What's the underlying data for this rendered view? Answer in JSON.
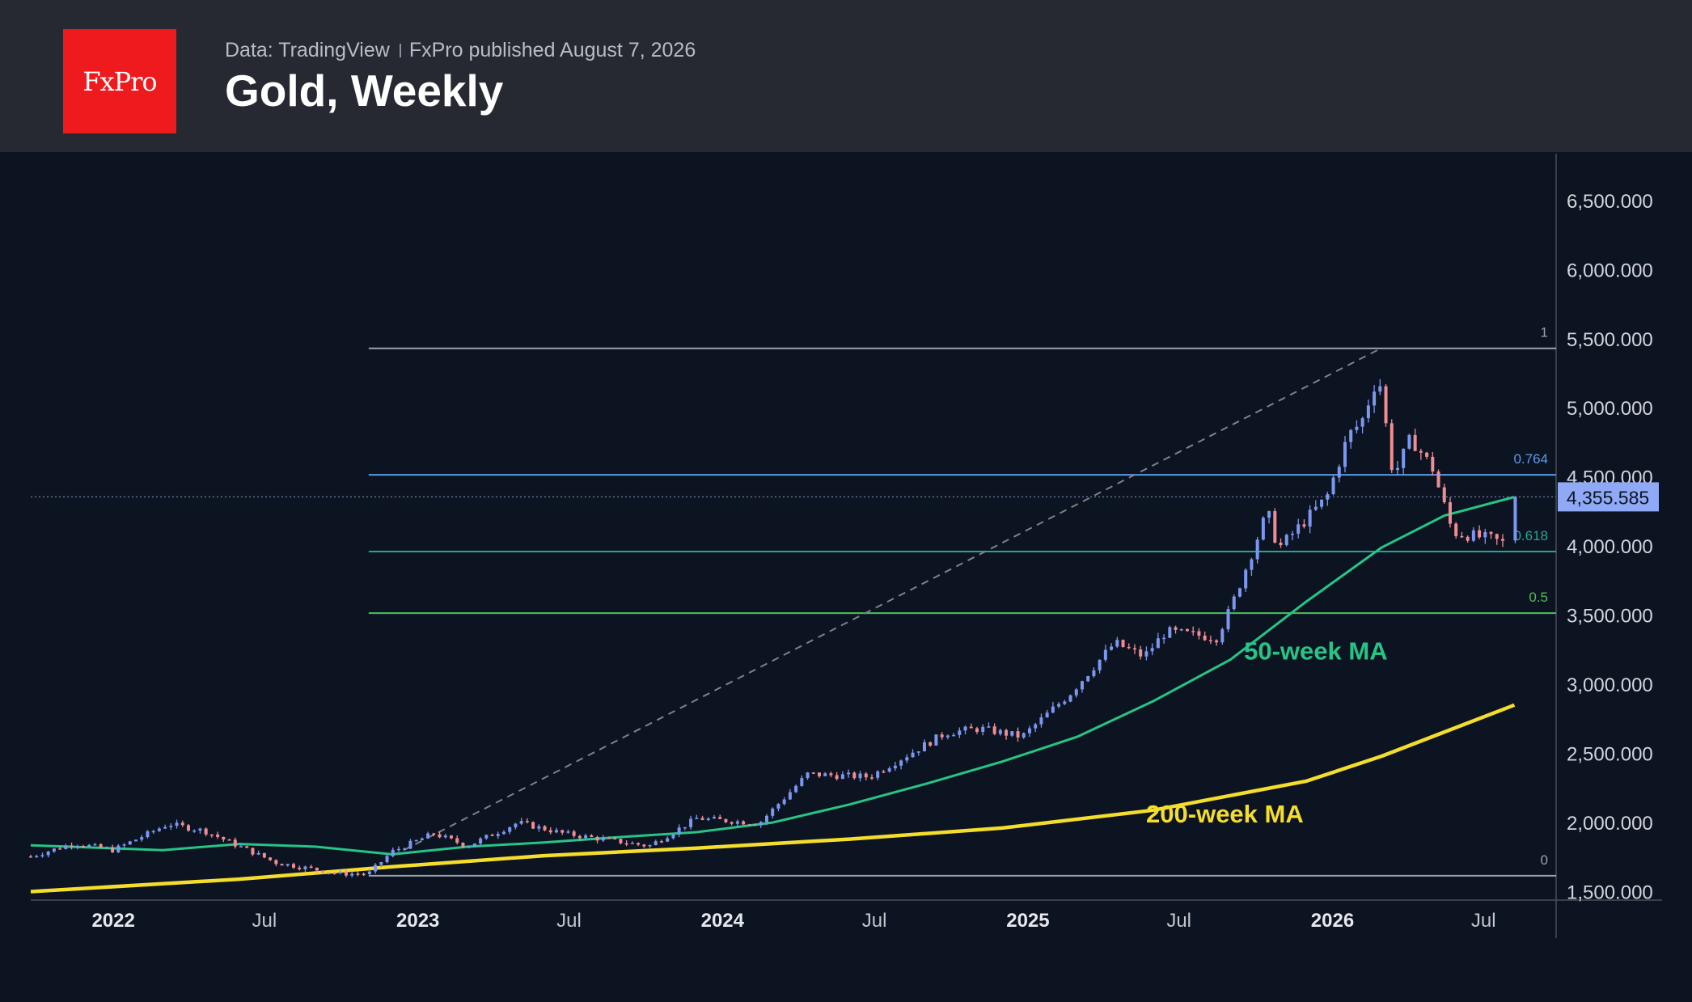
{
  "header": {
    "logo_text": "FxPro",
    "source": "Data: TradingView",
    "published": "FxPro published August 7, 2026",
    "title": "Gold, Weekly"
  },
  "colors": {
    "background": "#0d1421",
    "header_bg": "#262932",
    "logo_bg": "#ef1a1d",
    "up_candle": "#7b97f0",
    "down_candle": "#ef8d93",
    "ma50": "#26c486",
    "ma200": "#f5dd2c",
    "price_label": "#8fa9f6"
  },
  "chart_data": {
    "type": "candlestick",
    "timeframe": "weekly",
    "x_tick_labels": [
      {
        "label": "2022",
        "date": "2022-01-01",
        "bold": true
      },
      {
        "label": "Jul",
        "date": "2022-07-01",
        "bold": false
      },
      {
        "label": "2023",
        "date": "2023-01-01",
        "bold": true
      },
      {
        "label": "Jul",
        "date": "2023-07-01",
        "bold": false
      },
      {
        "label": "2024",
        "date": "2024-01-01",
        "bold": true
      },
      {
        "label": "Jul",
        "date": "2024-07-01",
        "bold": false
      },
      {
        "label": "2025",
        "date": "2025-01-01",
        "bold": true
      },
      {
        "label": "Jul",
        "date": "2025-07-01",
        "bold": false
      },
      {
        "label": "2026",
        "date": "2026-01-01",
        "bold": true
      },
      {
        "label": "Jul",
        "date": "2026-07-01",
        "bold": false
      }
    ],
    "x_range": [
      "2021-09-24",
      "2026-09-26"
    ],
    "y_range": [
      1000,
      6850
    ],
    "y_tick_labels": [
      {
        "label": "1,500.000",
        "value": 1500
      },
      {
        "label": "2,000.000",
        "value": 2000
      },
      {
        "label": "2,500.000",
        "value": 2500
      },
      {
        "label": "3,000.000",
        "value": 3000
      },
      {
        "label": "3,500.000",
        "value": 3500
      },
      {
        "label": "4,000.000",
        "value": 4000
      },
      {
        "label": "4,500.000",
        "value": 4500
      },
      {
        "label": "5,000.000",
        "value": 5000
      },
      {
        "label": "5,500.000",
        "value": 5500
      },
      {
        "label": "6,000.000",
        "value": 6000
      },
      {
        "label": "6,500.000",
        "value": 6500
      }
    ],
    "last_price": 4355.585,
    "last_price_label": "4,355.585",
    "candle_key_points": [
      [
        "2021-09-24",
        1755
      ],
      [
        "2021-11-15",
        1850
      ],
      [
        "2022-01-01",
        1800
      ],
      [
        "2022-03-08",
        1990
      ],
      [
        "2022-04-20",
        1940
      ],
      [
        "2022-07-15",
        1710
      ],
      [
        "2022-09-28",
        1630
      ],
      [
        "2022-11-03",
        1630
      ],
      [
        "2022-12-01",
        1790
      ],
      [
        "2023-01-20",
        1920
      ],
      [
        "2023-03-01",
        1830
      ],
      [
        "2023-05-01",
        2000
      ],
      [
        "2023-06-25",
        1920
      ],
      [
        "2023-10-05",
        1830
      ],
      [
        "2023-12-01",
        2030
      ],
      [
        "2024-02-14",
        1995
      ],
      [
        "2024-04-12",
        2350
      ],
      [
        "2024-06-25",
        2330
      ],
      [
        "2024-09-25",
        2650
      ],
      [
        "2024-11-05",
        2680
      ],
      [
        "2024-12-25",
        2620
      ],
      [
        "2025-02-20",
        2930
      ],
      [
        "2025-04-15",
        3300
      ],
      [
        "2025-05-20",
        3200
      ],
      [
        "2025-06-15",
        3380
      ],
      [
        "2025-08-15",
        3340
      ],
      [
        "2025-09-01",
        3550
      ],
      [
        "2025-10-15",
        4250
      ],
      [
        "2025-10-28",
        3980
      ],
      [
        "2025-12-25",
        4350
      ],
      [
        "2026-01-20",
        4800
      ],
      [
        "2026-02-05",
        4900
      ],
      [
        "2026-02-25",
        5250
      ],
      [
        "2026-03-15",
        4500
      ],
      [
        "2026-04-05",
        4780
      ],
      [
        "2026-05-01",
        4560
      ],
      [
        "2026-05-25",
        4100
      ],
      [
        "2026-07-10",
        4050
      ],
      [
        "2026-07-25",
        4020
      ]
    ],
    "last_candle": {
      "open": 4040,
      "high": 4360,
      "low": 4020,
      "close": 4355.585
    },
    "moving_averages": [
      {
        "name": "50-week MA",
        "points": [
          [
            "2021-09-24",
            1835
          ],
          [
            "2022-03-01",
            1800
          ],
          [
            "2022-06-01",
            1845
          ],
          [
            "2022-09-01",
            1825
          ],
          [
            "2022-12-01",
            1770
          ],
          [
            "2023-03-01",
            1825
          ],
          [
            "2023-06-01",
            1855
          ],
          [
            "2023-09-01",
            1895
          ],
          [
            "2023-12-01",
            1930
          ],
          [
            "2024-03-01",
            2000
          ],
          [
            "2024-06-01",
            2130
          ],
          [
            "2024-09-01",
            2280
          ],
          [
            "2024-12-01",
            2440
          ],
          [
            "2025-03-01",
            2620
          ],
          [
            "2025-06-01",
            2880
          ],
          [
            "2025-09-01",
            3180
          ],
          [
            "2025-12-01",
            3600
          ],
          [
            "2026-03-01",
            3990
          ],
          [
            "2026-05-15",
            4220
          ],
          [
            "2026-08-07",
            4355
          ]
        ]
      },
      {
        "name": "200-week MA",
        "points": [
          [
            "2021-09-24",
            1500
          ],
          [
            "2022-06-01",
            1590
          ],
          [
            "2022-12-01",
            1680
          ],
          [
            "2023-06-01",
            1760
          ],
          [
            "2023-12-01",
            1815
          ],
          [
            "2024-06-01",
            1880
          ],
          [
            "2024-12-01",
            1960
          ],
          [
            "2025-06-01",
            2090
          ],
          [
            "2025-12-01",
            2300
          ],
          [
            "2026-03-01",
            2480
          ],
          [
            "2026-08-07",
            2850
          ]
        ]
      }
    ],
    "fibonacci": {
      "start_date": "2022-11-03",
      "end_date": "2026-09-26",
      "levels": [
        {
          "ratio": "1",
          "value": 5430
        },
        {
          "ratio": "0.764",
          "value": 4515
        },
        {
          "ratio": "0.618",
          "value": 3960
        },
        {
          "ratio": "0.5",
          "value": 3515
        },
        {
          "ratio": "0",
          "value": 1615
        }
      ],
      "trend_line": [
        [
          "2022-12-15",
          1800
        ],
        [
          "2026-02-28",
          5430
        ]
      ]
    },
    "annotations": [
      {
        "text": "50-week MA",
        "date": "2025-12-12",
        "value": 3180
      },
      {
        "text": "200-week MA",
        "date": "2025-08-25",
        "value": 2000
      }
    ],
    "grid": false
  }
}
